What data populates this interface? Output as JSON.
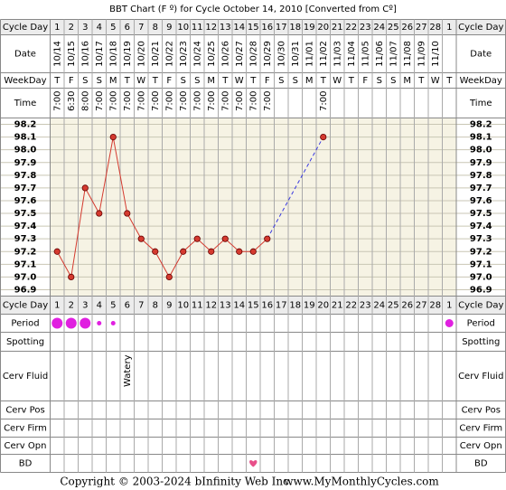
{
  "chart_data": {
    "type": "line",
    "title": "BBT Chart (F º) for Cycle October 14, 2010  [Converted from Cº]",
    "row_labels": {
      "cycle_day": "Cycle Day",
      "date": "Date",
      "weekday": "WeekDay",
      "time": "Time",
      "period": "Period",
      "spotting": "Spotting",
      "cerv_fluid": "Cerv Fluid",
      "cerv_pos": "Cerv Pos",
      "cerv_firm": "Cerv Firm",
      "cerv_opn": "Cerv Opn",
      "bd": "BD"
    },
    "cycle_days": [
      1,
      2,
      3,
      4,
      5,
      6,
      7,
      8,
      9,
      10,
      11,
      12,
      13,
      14,
      15,
      16,
      17,
      18,
      19,
      20,
      21,
      22,
      23,
      24,
      25,
      26,
      27,
      28,
      1
    ],
    "categories": [
      "10/14",
      "10/15",
      "10/16",
      "10/17",
      "10/18",
      "10/19",
      "10/20",
      "10/21",
      "10/22",
      "10/23",
      "10/24",
      "10/25",
      "10/26",
      "10/27",
      "10/28",
      "10/29",
      "10/30",
      "10/31",
      "11/01",
      "11/02",
      "11/03",
      "11/04",
      "11/05",
      "11/06",
      "11/07",
      "11/08",
      "11/09",
      "11/10",
      null
    ],
    "weekdays": [
      "T",
      "F",
      "S",
      "S",
      "M",
      "T",
      "W",
      "T",
      "F",
      "S",
      "S",
      "M",
      "T",
      "W",
      "T",
      "F",
      "S",
      "S",
      "M",
      "T",
      "W",
      "T",
      "F",
      "S",
      "S",
      "M",
      "T",
      "W",
      "T"
    ],
    "times": [
      "7:00",
      "6:30",
      "8:00",
      "7:00",
      "7:00",
      "7:00",
      "7:00",
      "7:00",
      "7:00",
      "7:00",
      "7:00",
      "7:00",
      "7:00",
      "7:00",
      "7:00",
      "7:00",
      null,
      null,
      null,
      "7:00",
      null,
      null,
      null,
      null,
      null,
      null,
      null,
      null,
      null
    ],
    "series": [
      {
        "color": "#d43a2f",
        "values": [
          97.2,
          97.0,
          97.7,
          97.5,
          98.1,
          97.5,
          97.3,
          97.2,
          97.0,
          97.2,
          97.3,
          97.2,
          97.3,
          97.2,
          97.2,
          97.3,
          null,
          null,
          null,
          98.1,
          null,
          null,
          null,
          null,
          null,
          null,
          null,
          null,
          null
        ]
      }
    ],
    "ylim": [
      96.85,
      98.25
    ],
    "yticks": [
      98.2,
      98.1,
      {
        "value": 98,
        "label": "98.0"
      },
      97.9,
      97.8,
      97.7,
      97.6,
      97.5,
      97.4,
      97.3,
      97.2,
      97.1,
      {
        "value": 97,
        "label": "97.0"
      },
      96.9
    ],
    "grid": true,
    "period": [
      "heavy",
      "heavy",
      "heavy",
      "light",
      "light",
      null,
      null,
      null,
      null,
      null,
      null,
      null,
      null,
      null,
      null,
      null,
      null,
      null,
      null,
      null,
      null,
      null,
      null,
      null,
      null,
      null,
      null,
      null,
      "medium"
    ],
    "period_color": "#e020e0",
    "cerv_fluid": [
      null,
      null,
      null,
      null,
      null,
      "Watery",
      null,
      null,
      null,
      null,
      null,
      null,
      null,
      null,
      null,
      null,
      null,
      null,
      null,
      null,
      null,
      null,
      null,
      null,
      null,
      null,
      null,
      null,
      null
    ],
    "bd": [
      null,
      null,
      null,
      null,
      null,
      null,
      null,
      null,
      null,
      null,
      null,
      null,
      null,
      null,
      true,
      null,
      null,
      null,
      null,
      null,
      null,
      null,
      null,
      null,
      null,
      null,
      null,
      null,
      null
    ],
    "bd_color": "#e8508a",
    "footer": {
      "copyright": "Copyright © 2003-2024 bInfinity Web Inc.",
      "site": "www.MyMonthlyCycles.com"
    }
  }
}
